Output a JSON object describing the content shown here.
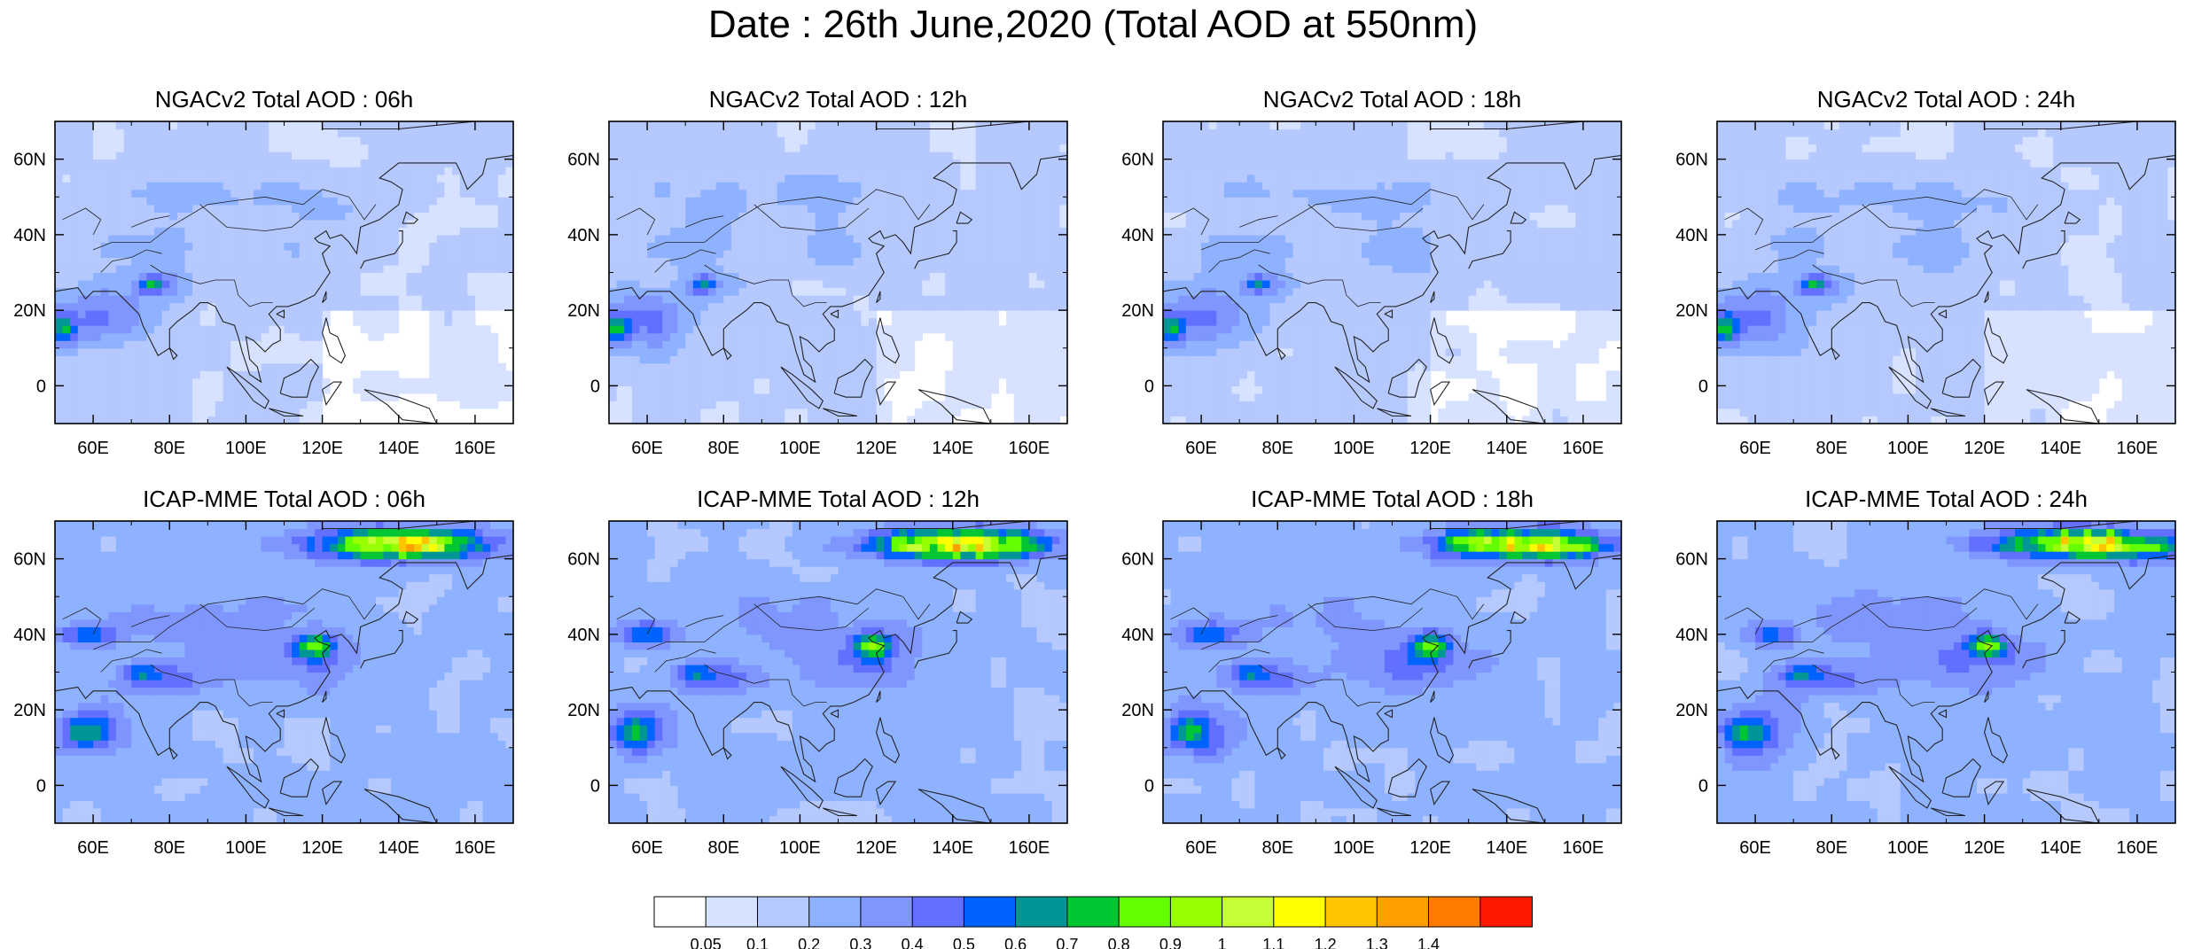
{
  "figure": {
    "title": "Date : 26th June,2020 (Total AOD at 550nm)"
  },
  "panels": [
    {
      "title": "NGACv2 Total AOD : 06h",
      "model": "NGACv2",
      "hour": "06h"
    },
    {
      "title": "NGACv2 Total AOD : 12h",
      "model": "NGACv2",
      "hour": "12h"
    },
    {
      "title": "NGACv2 Total AOD : 18h",
      "model": "NGACv2",
      "hour": "18h"
    },
    {
      "title": "NGACv2 Total AOD : 24h",
      "model": "NGACv2",
      "hour": "24h"
    },
    {
      "title": "ICAP-MME Total AOD : 06h",
      "model": "ICAP-MME",
      "hour": "06h"
    },
    {
      "title": "ICAP-MME Total AOD : 12h",
      "model": "ICAP-MME",
      "hour": "12h"
    },
    {
      "title": "ICAP-MME Total AOD : 18h",
      "model": "ICAP-MME",
      "hour": "18h"
    },
    {
      "title": "ICAP-MME Total AOD : 24h",
      "model": "ICAP-MME",
      "hour": "24h"
    }
  ],
  "axes": {
    "lon_range": [
      50,
      170
    ],
    "lat_range": [
      -10,
      70
    ],
    "lon_ticks": [
      "60E",
      "80E",
      "100E",
      "120E",
      "140E",
      "160E"
    ],
    "lon_tick_values": [
      60,
      80,
      100,
      120,
      140,
      160
    ],
    "lat_ticks": [
      "0",
      "20N",
      "40N",
      "60N"
    ],
    "lat_tick_values": [
      0,
      20,
      40,
      60
    ]
  },
  "colorbar": {
    "labels": [
      "0.05",
      "0.1",
      "0.2",
      "0.3",
      "0.4",
      "0.5",
      "0.6",
      "0.7",
      "0.8",
      "0.9",
      "1",
      "1.1",
      "1.2",
      "1.3",
      "1.4"
    ],
    "colors": [
      "#ffffff",
      "#d6e2ff",
      "#b5c9ff",
      "#8eb2ff",
      "#7f96ff",
      "#6370ff",
      "#0063ff",
      "#009696",
      "#00c633",
      "#63ff00",
      "#96ff00",
      "#c6ff33",
      "#ffff00",
      "#ffc600",
      "#ffa000",
      "#ff7c00",
      "#ff1900"
    ]
  }
}
